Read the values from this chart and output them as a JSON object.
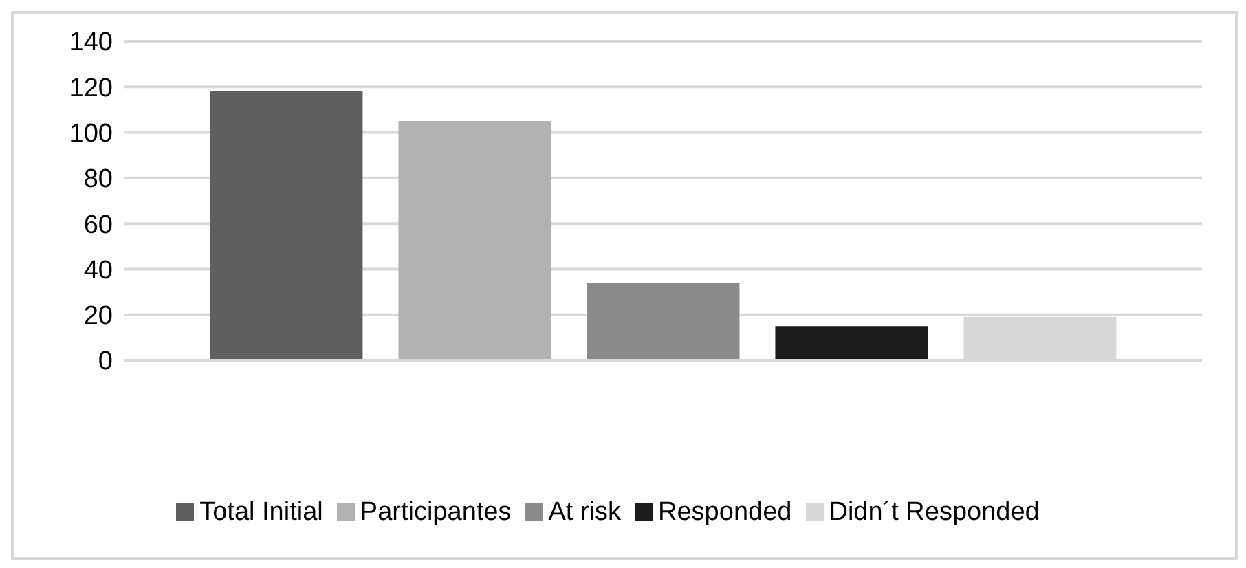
{
  "chart_data": {
    "type": "bar",
    "categories": [
      null
    ],
    "series": [
      {
        "name": "Total Initial",
        "color": "#5f5f5f",
        "values": [
          118
        ]
      },
      {
        "name": "Participantes",
        "color": "#b2b2b2",
        "values": [
          105
        ]
      },
      {
        "name": "At risk",
        "color": "#8a8a8a",
        "values": [
          34
        ]
      },
      {
        "name": "Responded",
        "color": "#1c1c1c",
        "values": [
          15
        ]
      },
      {
        "name": "Didn´t Responded",
        "color": "#d9d9d9",
        "values": [
          19
        ]
      }
    ],
    "ylim": [
      0,
      140
    ],
    "yticks": [
      0,
      20,
      40,
      60,
      80,
      100,
      120,
      140
    ],
    "grid": "y",
    "legend": "bottom"
  }
}
